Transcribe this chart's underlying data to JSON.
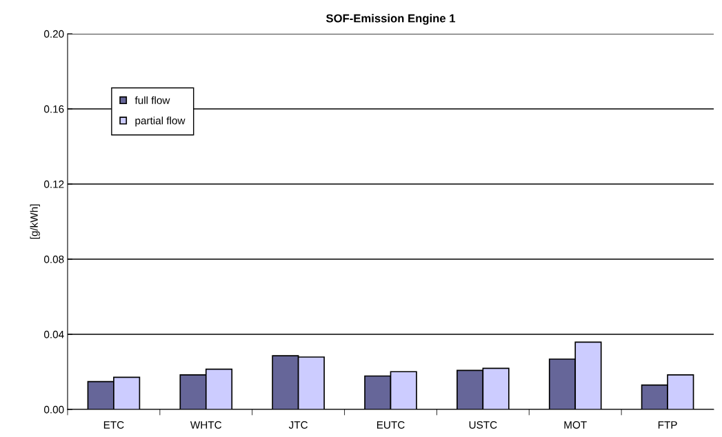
{
  "chart_data": {
    "type": "bar",
    "title": "SOF-Emission Engine 1",
    "ylabel": "[g/kWh]",
    "categories": [
      "ETC",
      "WHTC",
      "JTC",
      "EUTC",
      "USTC",
      "MOT",
      "FTP"
    ],
    "series": [
      {
        "name": "full flow",
        "color": "#666699",
        "values": [
          0.0148,
          0.0184,
          0.0286,
          0.0178,
          0.0208,
          0.0268,
          0.013
        ]
      },
      {
        "name": "partial flow",
        "color": "#ccccff",
        "values": [
          0.0171,
          0.0214,
          0.0279,
          0.0201,
          0.0219,
          0.0358,
          0.0184
        ]
      }
    ],
    "ylim": [
      0,
      0.2
    ],
    "yticks": [
      {
        "value": 0,
        "label": "0.00"
      },
      {
        "value": 0.04,
        "label": "0.04"
      },
      {
        "value": 0.08,
        "label": "0.08"
      },
      {
        "value": 0.12,
        "label": "0.12"
      },
      {
        "value": 0.16,
        "label": "0.16"
      },
      {
        "value": 0.2,
        "label": "0.20"
      }
    ],
    "grid": "y",
    "legend": "top left"
  }
}
